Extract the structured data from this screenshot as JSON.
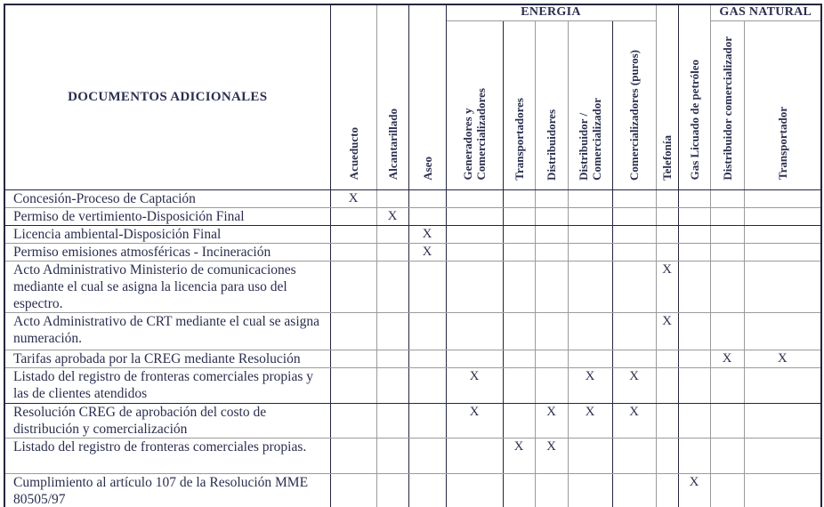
{
  "document": {
    "corner_header": "DOCUMENTOS ADICIONALES",
    "mark_symbol": "X",
    "groups": {
      "energia": "ENERGIA",
      "gas_natural": "GAS NATURAL"
    },
    "columns": [
      {
        "id": "acueducto",
        "label": "Acueducto",
        "group": ""
      },
      {
        "id": "alcantarillado",
        "label": "Alcantarillado",
        "group": ""
      },
      {
        "id": "aseo",
        "label": "Aseo",
        "group": ""
      },
      {
        "id": "generadores_comercializadores",
        "label": "Generadores y\nComercializadores",
        "group": "ENERGIA"
      },
      {
        "id": "transportadores",
        "label": "Transportadores",
        "group": "ENERGIA"
      },
      {
        "id": "distribuidores",
        "label": "Distribuidores",
        "group": "ENERGIA"
      },
      {
        "id": "distribuidor_comercializador",
        "label": "Distribuidor /\nComercializador",
        "group": "ENERGIA"
      },
      {
        "id": "comercializadores_puros",
        "label": "Comercializadores (puros)",
        "group": "ENERGIA"
      },
      {
        "id": "telefonia",
        "label": "Telefonía",
        "group": ""
      },
      {
        "id": "gas_licuado_petroleo",
        "label": "Gas Licuado de petróleo",
        "group": ""
      },
      {
        "id": "gn_distribuidor_comercializador",
        "label": "Distribuidor comercializador",
        "group": "GAS NATURAL"
      },
      {
        "id": "gn_transportador",
        "label": "Transportador",
        "group": "GAS NATURAL"
      }
    ],
    "rows": [
      {
        "label": "Concesión-Proceso de Captación",
        "marks": [
          "acueducto"
        ]
      },
      {
        "label": "Permiso de vertimiento-Disposición Final",
        "marks": [
          "alcantarillado"
        ]
      },
      {
        "label": "Licencia ambiental-Disposición Final",
        "marks": [
          "aseo"
        ]
      },
      {
        "label": "Permiso emisiones atmosféricas - Incineración",
        "marks": [
          "aseo"
        ]
      },
      {
        "label": "Acto Administrativo Ministerio de comunicaciones mediante el cual se asigna la licencia para uso del espectro.",
        "marks": [
          "telefonia"
        ]
      },
      {
        "label": "Acto Administrativo de CRT mediante el cual se asigna numeración.",
        "marks": [
          "telefonia"
        ]
      },
      {
        "label": "Tarifas aprobada por la CREG mediante Resolución",
        "marks": [
          "gn_distribuidor_comercializador",
          "gn_transportador"
        ]
      },
      {
        "label": "Listado del registro de fronteras comerciales propias y las de clientes atendidos",
        "marks": [
          "generadores_comercializadores",
          "distribuidor_comercializador",
          "comercializadores_puros"
        ]
      },
      {
        "label": "Resolución CREG de aprobación del costo de distribución y comercialización",
        "marks": [
          "generadores_comercializadores",
          "distribuidores",
          "distribuidor_comercializador",
          "comercializadores_puros"
        ]
      },
      {
        "label": "Listado del registro de fronteras comerciales propias.",
        "marks": [
          "transportadores",
          "distribuidores"
        ]
      },
      {
        "label": "Cumplimiento al artículo 107 de la Resolución MME 80505/97",
        "marks": [
          "gas_licuado_petroleo"
        ]
      }
    ],
    "colors": {
      "text": "#2b2e4e",
      "line_dark": "#23263f",
      "line_gray": "#9b9b9b",
      "background": "#ffffff"
    }
  }
}
